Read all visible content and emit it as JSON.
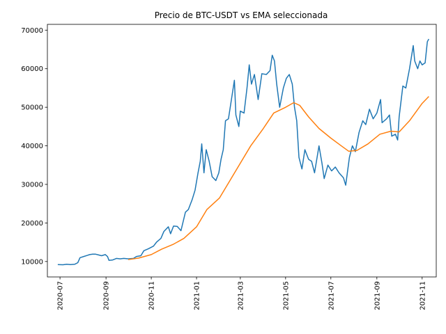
{
  "chart_data": {
    "type": "line",
    "title": "Precio de BTC-USDT vs EMA seleccionada",
    "xlabel": "",
    "ylabel": "",
    "grid": false,
    "x_range": [
      "2020-06-14",
      "2021-11-20"
    ],
    "ylim": [
      6000,
      71500
    ],
    "x_ticks": [
      "2020-07",
      "2020-09",
      "2020-11",
      "2021-01",
      "2021-03",
      "2021-05",
      "2021-07",
      "2021-09",
      "2021-11"
    ],
    "y_ticks": [
      10000,
      20000,
      30000,
      40000,
      50000,
      60000,
      70000
    ],
    "series": [
      {
        "color": "#1f77b4",
        "points": [
          [
            "2020-06-28",
            9200
          ],
          [
            "2020-07-05",
            9150
          ],
          [
            "2020-07-10",
            9300
          ],
          [
            "2020-07-15",
            9200
          ],
          [
            "2020-07-21",
            9300
          ],
          [
            "2020-07-25",
            9700
          ],
          [
            "2020-07-28",
            11000
          ],
          [
            "2020-08-02",
            11300
          ],
          [
            "2020-08-07",
            11600
          ],
          [
            "2020-08-10",
            11800
          ],
          [
            "2020-08-14",
            11900
          ],
          [
            "2020-08-18",
            11900
          ],
          [
            "2020-08-22",
            11700
          ],
          [
            "2020-08-26",
            11500
          ],
          [
            "2020-08-31",
            11800
          ],
          [
            "2020-09-03",
            11300
          ],
          [
            "2020-09-05",
            10300
          ],
          [
            "2020-09-10",
            10400
          ],
          [
            "2020-09-15",
            10800
          ],
          [
            "2020-09-20",
            10700
          ],
          [
            "2020-09-25",
            10800
          ],
          [
            "2020-10-01",
            10700
          ],
          [
            "2020-10-08",
            10800
          ],
          [
            "2020-10-12",
            11300
          ],
          [
            "2020-10-18",
            11500
          ],
          [
            "2020-10-22",
            12800
          ],
          [
            "2020-10-28",
            13300
          ],
          [
            "2020-11-04",
            14000
          ],
          [
            "2020-11-08",
            15000
          ],
          [
            "2020-11-14",
            16000
          ],
          [
            "2020-11-18",
            17800
          ],
          [
            "2020-11-24",
            19000
          ],
          [
            "2020-11-27",
            17200
          ],
          [
            "2020-12-01",
            19200
          ],
          [
            "2020-12-06",
            19100
          ],
          [
            "2020-12-11",
            18000
          ],
          [
            "2020-12-17",
            22800
          ],
          [
            "2020-12-21",
            23500
          ],
          [
            "2020-12-26",
            26000
          ],
          [
            "2020-12-30",
            28500
          ],
          [
            "2021-01-03",
            33000
          ],
          [
            "2021-01-06",
            36000
          ],
          [
            "2021-01-08",
            40500
          ],
          [
            "2021-01-11",
            33000
          ],
          [
            "2021-01-14",
            39000
          ],
          [
            "2021-01-18",
            36000
          ],
          [
            "2021-01-22",
            32000
          ],
          [
            "2021-01-27",
            31000
          ],
          [
            "2021-01-31",
            33000
          ],
          [
            "2021-02-03",
            36500
          ],
          [
            "2021-02-06",
            39000
          ],
          [
            "2021-02-09",
            46500
          ],
          [
            "2021-02-13",
            47000
          ],
          [
            "2021-02-17",
            52000
          ],
          [
            "2021-02-21",
            57000
          ],
          [
            "2021-02-23",
            48000
          ],
          [
            "2021-02-27",
            45000
          ],
          [
            "2021-03-01",
            49000
          ],
          [
            "2021-03-06",
            48500
          ],
          [
            "2021-03-10",
            55000
          ],
          [
            "2021-03-13",
            61000
          ],
          [
            "2021-03-16",
            56000
          ],
          [
            "2021-03-20",
            58500
          ],
          [
            "2021-03-25",
            52000
          ],
          [
            "2021-03-30",
            58700
          ],
          [
            "2021-04-05",
            58500
          ],
          [
            "2021-04-10",
            59500
          ],
          [
            "2021-04-13",
            63500
          ],
          [
            "2021-04-16",
            62000
          ],
          [
            "2021-04-19",
            56000
          ],
          [
            "2021-04-23",
            50000
          ],
          [
            "2021-04-28",
            55000
          ],
          [
            "2021-05-02",
            57500
          ],
          [
            "2021-05-06",
            58500
          ],
          [
            "2021-05-10",
            56000
          ],
          [
            "2021-05-13",
            50000
          ],
          [
            "2021-05-16",
            46500
          ],
          [
            "2021-05-19",
            37000
          ],
          [
            "2021-05-23",
            34000
          ],
          [
            "2021-05-27",
            39000
          ],
          [
            "2021-06-01",
            36500
          ],
          [
            "2021-06-05",
            36000
          ],
          [
            "2021-06-09",
            33000
          ],
          [
            "2021-06-15",
            40000
          ],
          [
            "2021-06-19",
            35500
          ],
          [
            "2021-06-22",
            31500
          ],
          [
            "2021-06-27",
            35000
          ],
          [
            "2021-07-02",
            33500
          ],
          [
            "2021-07-07",
            34500
          ],
          [
            "2021-07-12",
            33000
          ],
          [
            "2021-07-18",
            31700
          ],
          [
            "2021-07-21",
            29800
          ],
          [
            "2021-07-26",
            37000
          ],
          [
            "2021-07-30",
            40000
          ],
          [
            "2021-08-03",
            38500
          ],
          [
            "2021-08-08",
            43500
          ],
          [
            "2021-08-13",
            46500
          ],
          [
            "2021-08-17",
            45500
          ],
          [
            "2021-08-22",
            49500
          ],
          [
            "2021-08-27",
            47000
          ],
          [
            "2021-09-01",
            48500
          ],
          [
            "2021-09-06",
            52000
          ],
          [
            "2021-09-08",
            46000
          ],
          [
            "2021-09-14",
            47000
          ],
          [
            "2021-09-18",
            48000
          ],
          [
            "2021-09-21",
            42500
          ],
          [
            "2021-09-26",
            43000
          ],
          [
            "2021-09-29",
            41500
          ],
          [
            "2021-10-01",
            47500
          ],
          [
            "2021-10-06",
            55500
          ],
          [
            "2021-10-10",
            55000
          ],
          [
            "2021-10-15",
            60000
          ],
          [
            "2021-10-20",
            66000
          ],
          [
            "2021-10-22",
            62000
          ],
          [
            "2021-10-26",
            60000
          ],
          [
            "2021-10-29",
            62000
          ],
          [
            "2021-11-01",
            61000
          ],
          [
            "2021-11-05",
            61500
          ],
          [
            "2021-11-08",
            67000
          ],
          [
            "2021-11-10",
            67700
          ]
        ]
      },
      {
        "color": "#ff7f0e",
        "points": [
          [
            "2020-10-01",
            10500
          ],
          [
            "2020-10-15",
            10900
          ],
          [
            "2020-11-01",
            11800
          ],
          [
            "2020-11-15",
            13200
          ],
          [
            "2020-12-01",
            14500
          ],
          [
            "2020-12-15",
            16000
          ],
          [
            "2021-01-01",
            19000
          ],
          [
            "2021-01-15",
            23500
          ],
          [
            "2021-02-01",
            26500
          ],
          [
            "2021-02-15",
            31000
          ],
          [
            "2021-03-01",
            35500
          ],
          [
            "2021-03-15",
            40000
          ],
          [
            "2021-04-01",
            44500
          ],
          [
            "2021-04-15",
            48500
          ],
          [
            "2021-05-01",
            50000
          ],
          [
            "2021-05-12",
            51200
          ],
          [
            "2021-05-20",
            50500
          ],
          [
            "2021-06-01",
            47500
          ],
          [
            "2021-06-15",
            44500
          ],
          [
            "2021-07-01",
            42000
          ],
          [
            "2021-07-15",
            40000
          ],
          [
            "2021-07-25",
            38600
          ],
          [
            "2021-08-05",
            38800
          ],
          [
            "2021-08-20",
            40500
          ],
          [
            "2021-09-05",
            43000
          ],
          [
            "2021-09-20",
            43800
          ],
          [
            "2021-10-01",
            43600
          ],
          [
            "2021-10-15",
            46500
          ],
          [
            "2021-11-01",
            51000
          ],
          [
            "2021-11-10",
            52800
          ]
        ]
      }
    ]
  }
}
